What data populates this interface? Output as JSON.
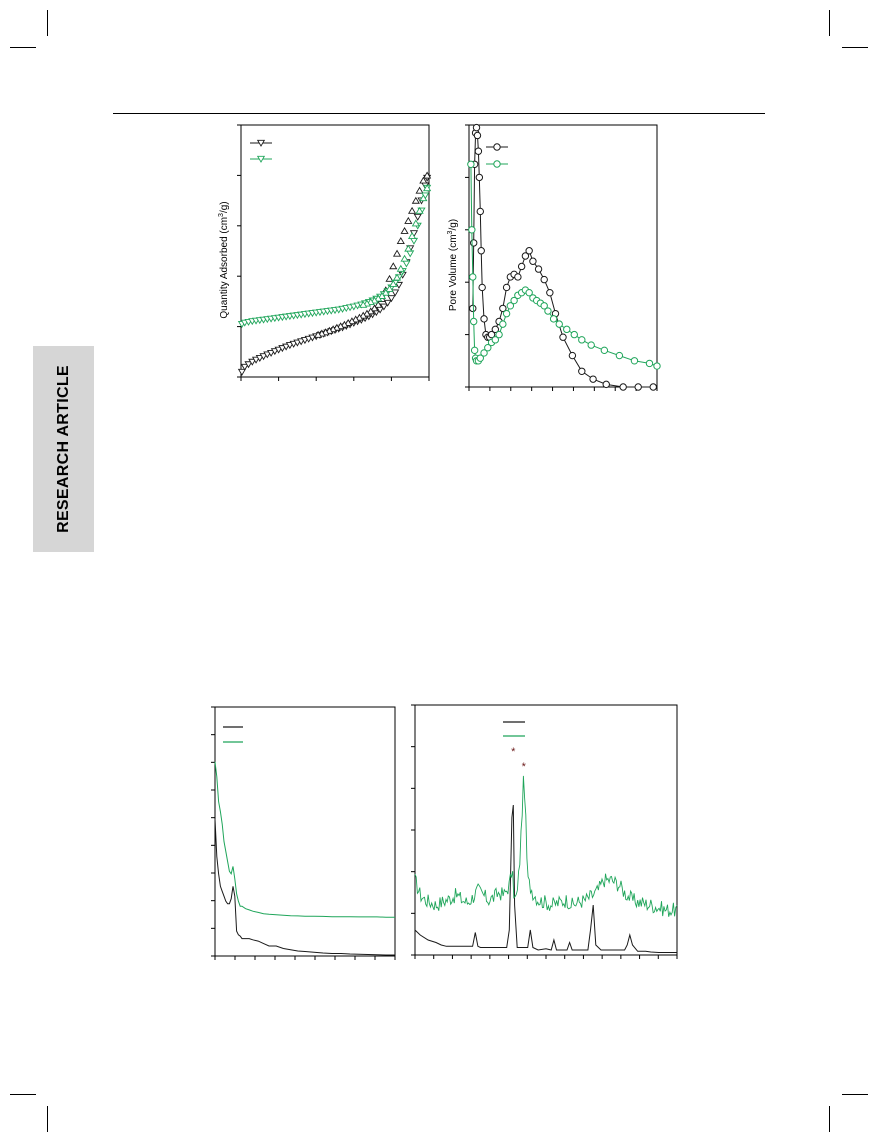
{
  "page": {
    "side_tab_label": "RESEARCH ARTICLE"
  },
  "colors": {
    "series_black": "#1a1a1a",
    "series_green": "#1fa55a",
    "star_marker": "#6b1a1a",
    "side_tab_bg": "#d6d6d6"
  },
  "chart_data": [
    {
      "id": "isotherm",
      "type": "scatter",
      "ylabel": "Quantity Adsorbed (cm3/g)",
      "xlim": [
        0,
        1
      ],
      "ylim": [
        0,
        1
      ],
      "x_ticks": 5,
      "y_ticks": 5,
      "legend_position": "top-left",
      "series": [
        {
          "color": "black",
          "marker": "triangle-down",
          "x": [
            0.005,
            0.02,
            0.04,
            0.06,
            0.08,
            0.1,
            0.12,
            0.14,
            0.16,
            0.18,
            0.2,
            0.22,
            0.24,
            0.26,
            0.28,
            0.3,
            0.32,
            0.34,
            0.36,
            0.38,
            0.4,
            0.42,
            0.44,
            0.46,
            0.48,
            0.5,
            0.52,
            0.54,
            0.56,
            0.58,
            0.6,
            0.62,
            0.64,
            0.66,
            0.68,
            0.7,
            0.72,
            0.74,
            0.76,
            0.78,
            0.8,
            0.82,
            0.84,
            0.86,
            0.88,
            0.9,
            0.92,
            0.94,
            0.96,
            0.98,
            0.99
          ],
          "y": [
            0.02,
            0.04,
            0.05,
            0.06,
            0.068,
            0.075,
            0.082,
            0.089,
            0.095,
            0.102,
            0.108,
            0.114,
            0.12,
            0.126,
            0.131,
            0.136,
            0.141,
            0.146,
            0.151,
            0.156,
            0.161,
            0.166,
            0.171,
            0.176,
            0.181,
            0.186,
            0.191,
            0.196,
            0.202,
            0.208,
            0.214,
            0.22,
            0.226,
            0.233,
            0.24,
            0.248,
            0.257,
            0.267,
            0.279,
            0.294,
            0.312,
            0.335,
            0.365,
            0.405,
            0.455,
            0.51,
            0.57,
            0.635,
            0.7,
            0.76,
            0.79
          ]
        },
        {
          "color": "black",
          "marker": "triangle-up",
          "x": [
            0.99,
            0.97,
            0.95,
            0.93,
            0.91,
            0.89,
            0.87,
            0.85,
            0.83,
            0.81,
            0.79,
            0.77,
            0.75,
            0.73,
            0.71,
            0.69,
            0.67,
            0.65,
            0.63,
            0.61,
            0.59,
            0.57,
            0.55,
            0.53,
            0.51,
            0.49,
            0.47,
            0.45,
            0.43,
            0.41
          ],
          "y": [
            0.8,
            0.78,
            0.74,
            0.7,
            0.66,
            0.62,
            0.58,
            0.54,
            0.49,
            0.44,
            0.39,
            0.345,
            0.31,
            0.287,
            0.273,
            0.261,
            0.252,
            0.244,
            0.236,
            0.229,
            0.222,
            0.215,
            0.208,
            0.202,
            0.196,
            0.19,
            0.184,
            0.178,
            0.173,
            0.168
          ]
        },
        {
          "color": "green",
          "marker": "triangle-down",
          "x": [
            0.005,
            0.02,
            0.04,
            0.06,
            0.08,
            0.1,
            0.12,
            0.14,
            0.16,
            0.18,
            0.2,
            0.22,
            0.24,
            0.26,
            0.28,
            0.3,
            0.32,
            0.34,
            0.36,
            0.38,
            0.4,
            0.42,
            0.44,
            0.46,
            0.48,
            0.5,
            0.52,
            0.54,
            0.56,
            0.58,
            0.6,
            0.62,
            0.64,
            0.66,
            0.68,
            0.7,
            0.72,
            0.74,
            0.76,
            0.78,
            0.8,
            0.82,
            0.84,
            0.86,
            0.88,
            0.9,
            0.92,
            0.94,
            0.96,
            0.98,
            0.99
          ],
          "y": [
            0.21,
            0.215,
            0.218,
            0.221,
            0.223,
            0.225,
            0.227,
            0.229,
            0.231,
            0.233,
            0.235,
            0.237,
            0.239,
            0.241,
            0.243,
            0.245,
            0.247,
            0.249,
            0.251,
            0.253,
            0.255,
            0.257,
            0.259,
            0.261,
            0.263,
            0.265,
            0.267,
            0.27,
            0.273,
            0.276,
            0.279,
            0.283,
            0.287,
            0.292,
            0.297,
            0.303,
            0.31,
            0.318,
            0.328,
            0.34,
            0.355,
            0.373,
            0.395,
            0.42,
            0.45,
            0.49,
            0.54,
            0.6,
            0.66,
            0.72,
            0.75
          ]
        },
        {
          "color": "green",
          "marker": "triangle-up",
          "x": [
            0.99,
            0.97,
            0.95,
            0.93,
            0.91,
            0.89,
            0.87,
            0.85,
            0.83,
            0.81,
            0.79,
            0.77,
            0.75,
            0.73,
            0.71,
            0.69,
            0.67,
            0.65
          ],
          "y": [
            0.75,
            0.71,
            0.66,
            0.61,
            0.56,
            0.51,
            0.47,
            0.43,
            0.395,
            0.37,
            0.35,
            0.335,
            0.322,
            0.312,
            0.304,
            0.298,
            0.292,
            0.287
          ]
        }
      ]
    },
    {
      "id": "pore",
      "type": "line",
      "ylabel": "Pore Volume (cm3/g)",
      "xlim": [
        0,
        1
      ],
      "ylim": [
        0,
        1
      ],
      "x_ticks": 9,
      "y_ticks": 5,
      "legend_position": "top-left",
      "series": [
        {
          "color": "black",
          "marker": "circle",
          "x": [
            0.02,
            0.025,
            0.03,
            0.035,
            0.04,
            0.045,
            0.05,
            0.055,
            0.06,
            0.065,
            0.07,
            0.08,
            0.09,
            0.1,
            0.11,
            0.12,
            0.14,
            0.16,
            0.18,
            0.2,
            0.22,
            0.24,
            0.26,
            0.28,
            0.3,
            0.32,
            0.34,
            0.37,
            0.4,
            0.43,
            0.46,
            0.5,
            0.55,
            0.6,
            0.66,
            0.73,
            0.82,
            0.9,
            0.98
          ],
          "y": [
            0.3,
            0.55,
            0.85,
            0.97,
            0.99,
            0.96,
            0.9,
            0.8,
            0.67,
            0.52,
            0.38,
            0.26,
            0.2,
            0.19,
            0.19,
            0.2,
            0.22,
            0.25,
            0.3,
            0.38,
            0.42,
            0.43,
            0.42,
            0.46,
            0.5,
            0.52,
            0.48,
            0.45,
            0.41,
            0.36,
            0.28,
            0.19,
            0.12,
            0.06,
            0.03,
            0.01,
            0.0,
            0.0,
            0.0
          ]
        },
        {
          "color": "green",
          "marker": "circle",
          "x": [
            0.01,
            0.015,
            0.02,
            0.025,
            0.03,
            0.035,
            0.04,
            0.05,
            0.06,
            0.08,
            0.1,
            0.12,
            0.14,
            0.16,
            0.18,
            0.2,
            0.22,
            0.24,
            0.26,
            0.28,
            0.3,
            0.32,
            0.34,
            0.36,
            0.38,
            0.4,
            0.42,
            0.45,
            0.48,
            0.52,
            0.56,
            0.6,
            0.65,
            0.72,
            0.8,
            0.88,
            0.96,
            1.0
          ],
          "y": [
            0.85,
            0.6,
            0.42,
            0.25,
            0.14,
            0.11,
            0.1,
            0.1,
            0.11,
            0.13,
            0.15,
            0.17,
            0.18,
            0.2,
            0.24,
            0.28,
            0.31,
            0.33,
            0.35,
            0.36,
            0.37,
            0.36,
            0.34,
            0.33,
            0.32,
            0.31,
            0.29,
            0.26,
            0.24,
            0.22,
            0.2,
            0.18,
            0.16,
            0.14,
            0.12,
            0.1,
            0.09,
            0.08
          ]
        }
      ]
    },
    {
      "id": "saxs",
      "type": "line",
      "xlim": [
        0,
        1
      ],
      "ylim": [
        0,
        1
      ],
      "x_ticks": 9,
      "y_ticks": 9,
      "legend_position": "top-left",
      "series": [
        {
          "color": "black",
          "x": [
            0,
            0.01,
            0.02,
            0.03,
            0.04,
            0.05,
            0.06,
            0.07,
            0.08,
            0.09,
            0.1,
            0.11,
            0.12,
            0.13,
            0.14,
            0.15,
            0.17,
            0.19,
            0.21,
            0.24,
            0.27,
            0.3,
            0.34,
            0.38,
            0.42,
            0.46,
            0.5,
            0.55,
            0.6,
            0.65,
            0.7,
            0.75,
            0.8,
            0.85,
            0.9,
            0.95,
            1.0
          ],
          "y": [
            0.55,
            0.4,
            0.33,
            0.28,
            0.26,
            0.24,
            0.22,
            0.21,
            0.21,
            0.23,
            0.28,
            0.24,
            0.1,
            0.085,
            0.08,
            0.07,
            0.07,
            0.07,
            0.065,
            0.06,
            0.05,
            0.04,
            0.04,
            0.03,
            0.025,
            0.02,
            0.018,
            0.015,
            0.012,
            0.01,
            0.01,
            0.008,
            0.007,
            0.006,
            0.005,
            0.004,
            0.004
          ]
        },
        {
          "color": "green",
          "x": [
            0,
            0.01,
            0.02,
            0.03,
            0.04,
            0.05,
            0.06,
            0.07,
            0.08,
            0.09,
            0.1,
            0.11,
            0.12,
            0.13,
            0.14,
            0.15,
            0.17,
            0.19,
            0.21,
            0.24,
            0.27,
            0.3,
            0.34,
            0.38,
            0.42,
            0.46,
            0.5,
            0.55,
            0.6,
            0.65,
            0.7,
            0.75,
            0.8,
            0.85,
            0.9,
            0.95,
            1.0
          ],
          "y": [
            0.78,
            0.72,
            0.62,
            0.58,
            0.53,
            0.46,
            0.42,
            0.38,
            0.34,
            0.33,
            0.36,
            0.31,
            0.25,
            0.22,
            0.2,
            0.2,
            0.19,
            0.185,
            0.18,
            0.175,
            0.17,
            0.168,
            0.166,
            0.164,
            0.162,
            0.161,
            0.16,
            0.16,
            0.159,
            0.158,
            0.158,
            0.158,
            0.157,
            0.157,
            0.157,
            0.156,
            0.156
          ]
        }
      ]
    },
    {
      "id": "waxs",
      "type": "line",
      "xlim": [
        0,
        1
      ],
      "ylim": [
        0,
        1
      ],
      "x_ticks": 14,
      "y_ticks": 6,
      "legend_position": "top-center",
      "annotations": [
        "*",
        "*"
      ],
      "series": [
        {
          "color": "black",
          "x": [
            0,
            0.02,
            0.05,
            0.08,
            0.1,
            0.12,
            0.14,
            0.16,
            0.18,
            0.2,
            0.22,
            0.23,
            0.24,
            0.25,
            0.27,
            0.29,
            0.31,
            0.33,
            0.35,
            0.36,
            0.37,
            0.375,
            0.38,
            0.39,
            0.41,
            0.43,
            0.44,
            0.45,
            0.47,
            0.5,
            0.52,
            0.53,
            0.54,
            0.56,
            0.58,
            0.59,
            0.6,
            0.62,
            0.64,
            0.66,
            0.67,
            0.68,
            0.69,
            0.71,
            0.74,
            0.77,
            0.8,
            0.81,
            0.82,
            0.83,
            0.85,
            0.88,
            0.9,
            0.93,
            0.96,
            1.0
          ],
          "y": [
            0.1,
            0.08,
            0.06,
            0.05,
            0.04,
            0.035,
            0.035,
            0.035,
            0.035,
            0.035,
            0.035,
            0.09,
            0.035,
            0.03,
            0.03,
            0.03,
            0.03,
            0.03,
            0.03,
            0.1,
            0.55,
            0.6,
            0.2,
            0.03,
            0.03,
            0.03,
            0.1,
            0.03,
            0.02,
            0.025,
            0.02,
            0.06,
            0.02,
            0.02,
            0.02,
            0.05,
            0.02,
            0.02,
            0.02,
            0.02,
            0.1,
            0.2,
            0.04,
            0.02,
            0.02,
            0.02,
            0.02,
            0.04,
            0.08,
            0.04,
            0.015,
            0.015,
            0.012,
            0.01,
            0.01,
            0.01
          ]
        },
        {
          "color": "green",
          "x": [
            0,
            0.02,
            0.04,
            0.06,
            0.08,
            0.1,
            0.12,
            0.14,
            0.16,
            0.18,
            0.2,
            0.22,
            0.24,
            0.26,
            0.28,
            0.3,
            0.32,
            0.34,
            0.36,
            0.37,
            0.38,
            0.39,
            0.4,
            0.41,
            0.415,
            0.42,
            0.43,
            0.45,
            0.47,
            0.5,
            0.52,
            0.55,
            0.58,
            0.6,
            0.62,
            0.65,
            0.68,
            0.7,
            0.72,
            0.75,
            0.78,
            0.8,
            0.83,
            0.86,
            0.9,
            0.93,
            0.96,
            1.0
          ],
          "y": [
            0.3,
            0.24,
            0.22,
            0.21,
            0.2,
            0.21,
            0.22,
            0.23,
            0.24,
            0.22,
            0.21,
            0.23,
            0.26,
            0.24,
            0.22,
            0.23,
            0.25,
            0.24,
            0.28,
            0.34,
            0.22,
            0.24,
            0.38,
            0.6,
            0.72,
            0.62,
            0.3,
            0.25,
            0.22,
            0.21,
            0.2,
            0.21,
            0.22,
            0.2,
            0.21,
            0.22,
            0.24,
            0.26,
            0.3,
            0.3,
            0.28,
            0.25,
            0.22,
            0.21,
            0.2,
            0.19,
            0.18,
            0.18
          ]
        }
      ]
    }
  ]
}
